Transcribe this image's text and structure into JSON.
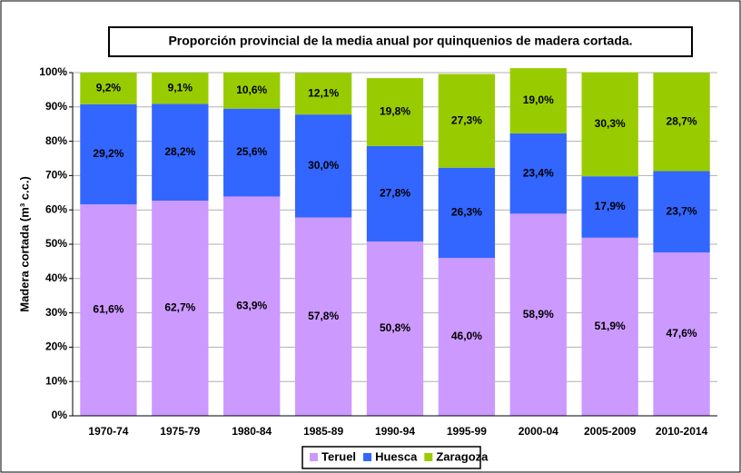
{
  "chart_data": {
    "type": "stacked_bar",
    "title": "Proporción provincial de la media anual por quinquenios de madera cortada.",
    "ylabel": "Madera cortada (m³ c.c.)",
    "categories": [
      "1970-74",
      "1975-79",
      "1980-84",
      "1985-89",
      "1990-94",
      "1995-99",
      "2000-04",
      "2005-2009",
      "2010-2014"
    ],
    "series": [
      {
        "name": "Teruel",
        "color": "#cc99ff",
        "values": [
          61.6,
          62.7,
          63.9,
          57.8,
          50.8,
          46.0,
          58.9,
          51.9,
          47.6
        ],
        "value_labels": [
          "61,6%",
          "62,7%",
          "63,9%",
          "57,8%",
          "50,8%",
          "46,0%",
          "58,9%",
          "51,9%",
          "47,6%"
        ]
      },
      {
        "name": "Huesca",
        "color": "#3366ff",
        "values": [
          29.2,
          28.2,
          25.6,
          30.0,
          27.8,
          26.3,
          23.4,
          17.9,
          23.7
        ],
        "value_labels": [
          "29,2%",
          "28,2%",
          "25,6%",
          "30,0%",
          "27,8%",
          "26,3%",
          "23,4%",
          "17,9%",
          "23,7%"
        ]
      },
      {
        "name": "Zaragoza",
        "color": "#99cc00",
        "values": [
          9.2,
          9.1,
          10.6,
          12.1,
          19.8,
          27.3,
          19.0,
          30.3,
          28.7
        ],
        "value_labels": [
          "9,2%",
          "9,1%",
          "10,6%",
          "12,1%",
          "19,8%",
          "27,3%",
          "19,0%",
          "30,3%",
          "28,7%"
        ]
      }
    ],
    "ylim": [
      0,
      100
    ],
    "yticks": [
      {
        "value": 0,
        "label": "0%"
      },
      {
        "value": 10,
        "label": "10%"
      },
      {
        "value": 20,
        "label": "20%"
      },
      {
        "value": 30,
        "label": "30%"
      },
      {
        "value": 40,
        "label": "40%"
      },
      {
        "value": 50,
        "label": "50%"
      },
      {
        "value": 60,
        "label": "60%"
      },
      {
        "value": 70,
        "label": "70%"
      },
      {
        "value": 80,
        "label": "80%"
      },
      {
        "value": 90,
        "label": "90%"
      },
      {
        "value": 100,
        "label": "100%"
      }
    ],
    "grid": true,
    "legend": "bottom"
  }
}
